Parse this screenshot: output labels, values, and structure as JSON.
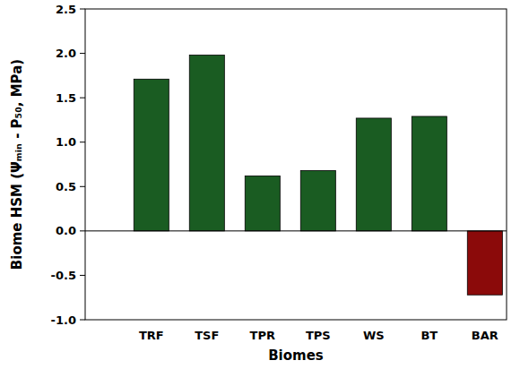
{
  "chart_data": {
    "type": "bar",
    "categories": [
      "TRF",
      "TSF",
      "TPR",
      "TPS",
      "WS",
      "BT",
      "BAR"
    ],
    "values": [
      1.71,
      1.98,
      0.62,
      0.68,
      1.27,
      1.29,
      -0.72
    ],
    "colors": [
      "#1a5c22",
      "#1a5c22",
      "#1a5c22",
      "#1a5c22",
      "#1a5c22",
      "#1a5c22",
      "#8b0a0a"
    ],
    "x_label": "Biomes",
    "y_label": "Biome HSM (Ψₘᵢₙ - P₅₀, MPa)",
    "ylim": [
      -1.0,
      2.5
    ],
    "yticks": [
      {
        "value": -1.0,
        "label": "-1.0"
      },
      -0.5,
      {
        "value": 0.0,
        "label": "0.0"
      },
      0.5,
      {
        "value": 1.0,
        "label": "1.0"
      },
      1.5,
      {
        "value": 2.0,
        "label": "2.0"
      },
      2.5
    ],
    "grid": false
  }
}
